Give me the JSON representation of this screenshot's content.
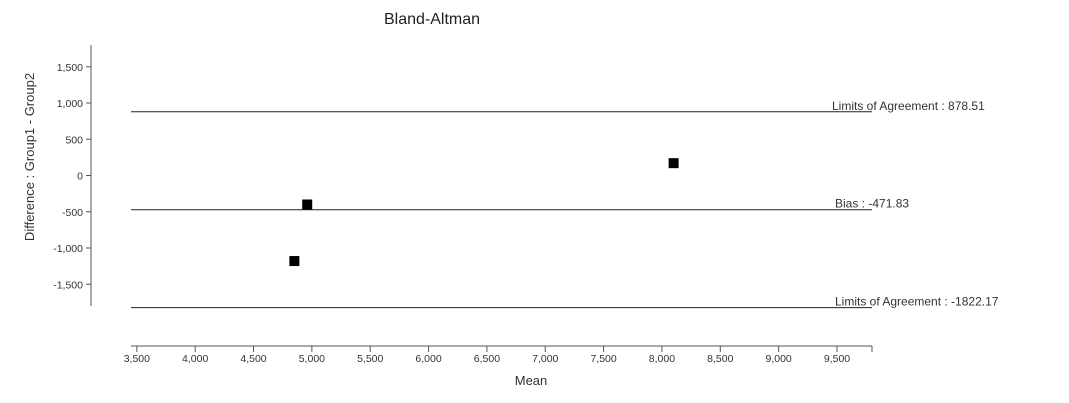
{
  "chart_data": {
    "type": "scatter",
    "title": "Bland-Altman",
    "xlabel": "Mean",
    "ylabel": "Difference : Group1 - Group2",
    "xlim": [
      3450,
      9800
    ],
    "ylim": [
      -1800,
      1800
    ],
    "x_ticks": [
      3500,
      4000,
      4500,
      5000,
      5500,
      6000,
      6500,
      7000,
      7500,
      8000,
      8500,
      9000,
      9500
    ],
    "x_tick_labels": [
      "3,500",
      "4,000",
      "4,500",
      "5,000",
      "5,500",
      "6,000",
      "6,500",
      "7,000",
      "7,500",
      "8,000",
      "8,500",
      "9,000",
      "9,500"
    ],
    "y_ticks": [
      1500,
      1000,
      500,
      0,
      -500,
      -1000,
      -1500
    ],
    "y_tick_labels": [
      "1,500",
      "1,000",
      "500",
      "0",
      "-500",
      "-1,000",
      "-1,500"
    ],
    "points": [
      {
        "x": 4850,
        "y": -1180
      },
      {
        "x": 4960,
        "y": -400
      },
      {
        "x": 8100,
        "y": 170
      }
    ],
    "reference_lines": [
      {
        "value": 878.51,
        "label": "Limits of Agreement : 878.51"
      },
      {
        "value": -471.83,
        "label": "Bias : -471.83"
      },
      {
        "value": -1822.17,
        "label": "Limits of Agreement : -1822.17"
      }
    ],
    "grid": false,
    "marker": "square",
    "marker_color": "#000000"
  }
}
